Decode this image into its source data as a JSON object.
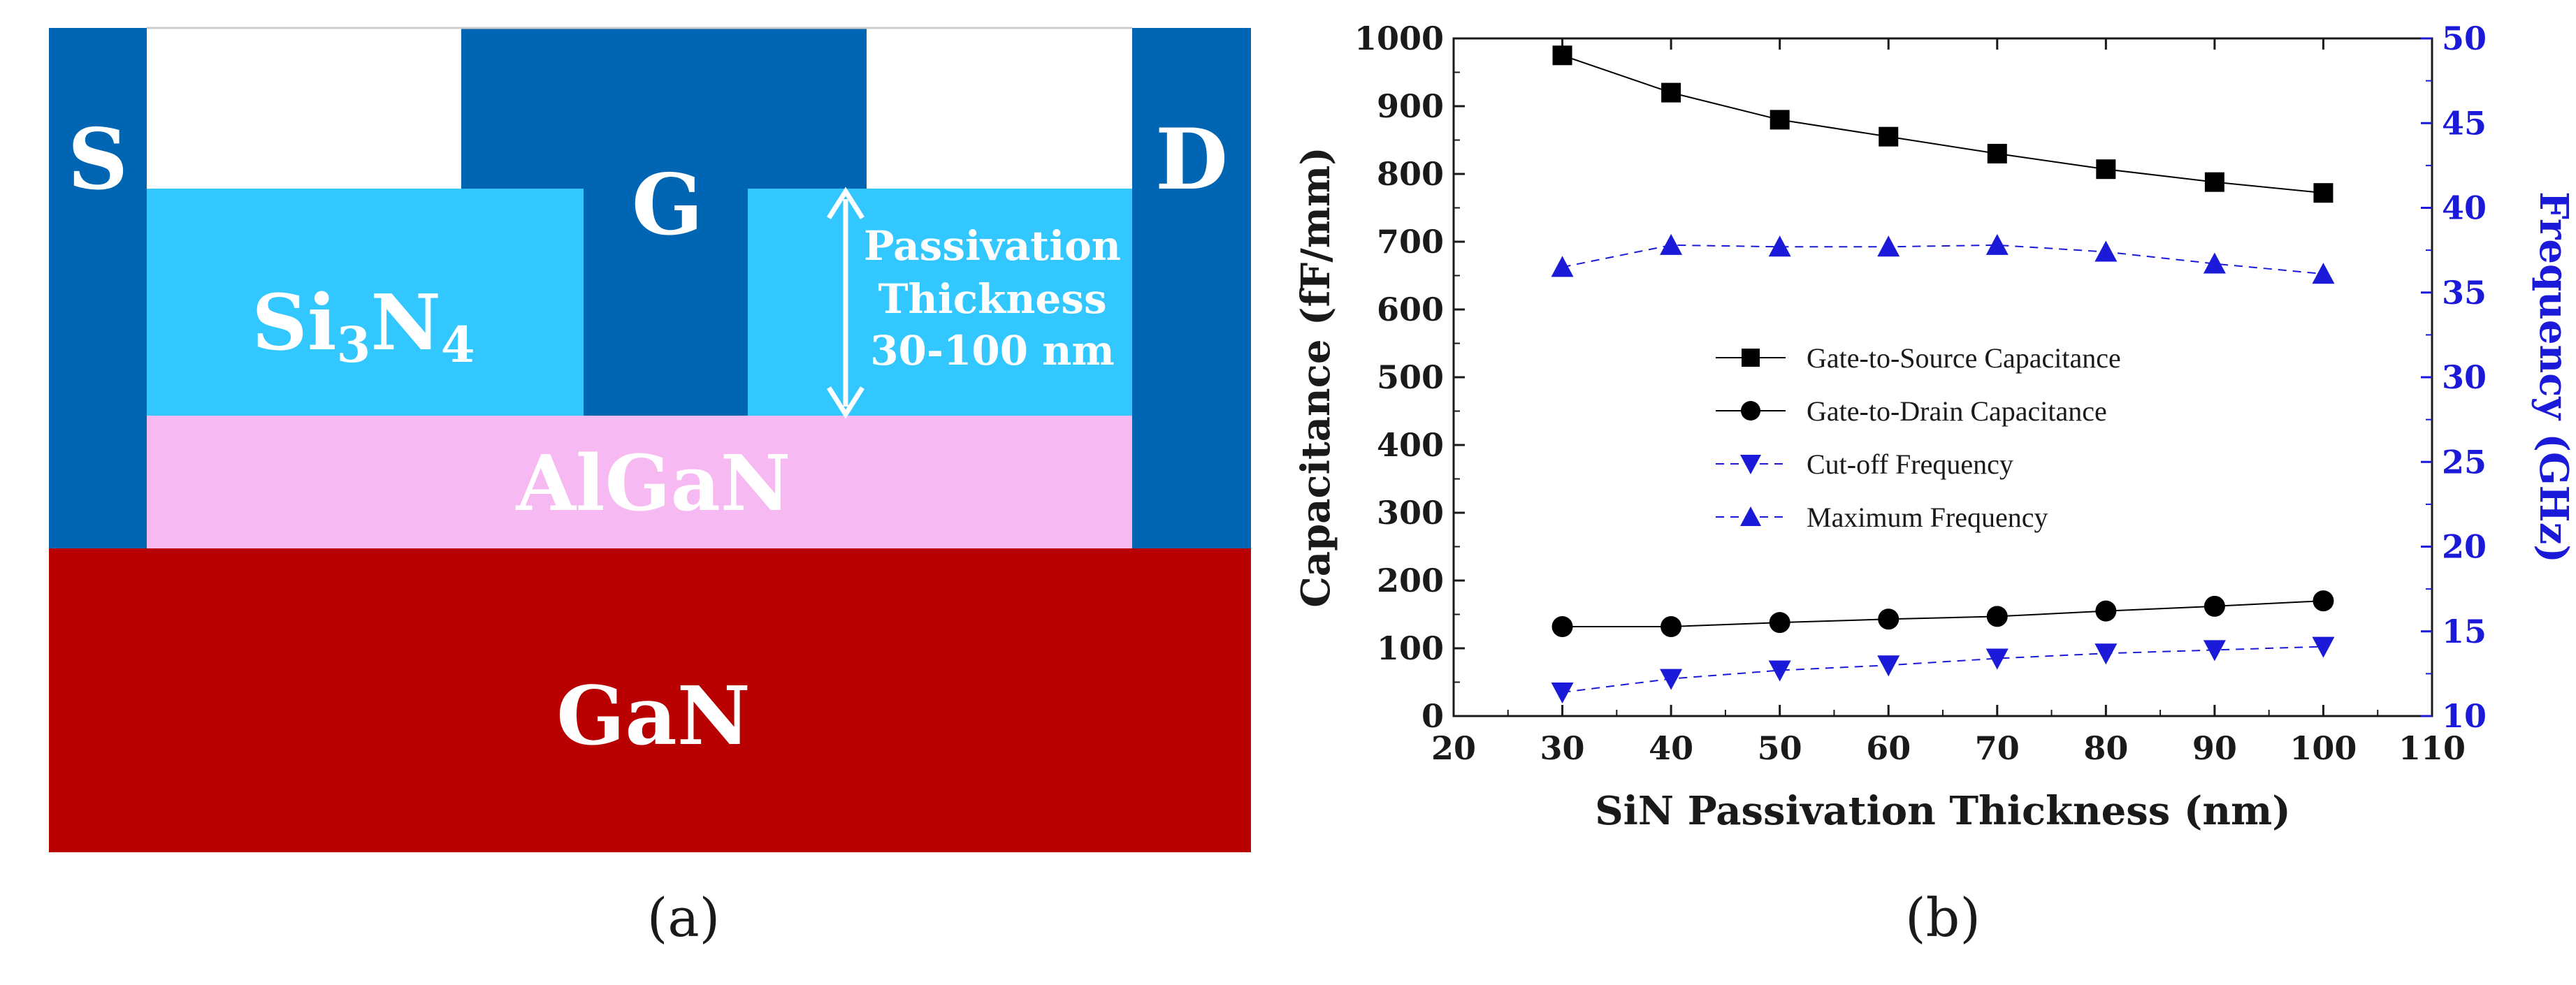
{
  "panel_a": {
    "caption": "(a)",
    "labels": {
      "source": "S",
      "gate": "G",
      "drain": "D",
      "passivation_pre": "Si",
      "passivation_sub1": "3",
      "passivation_mid": "N",
      "passivation_sub2": "4",
      "barrier": "AlGaN",
      "substrate": "GaN",
      "thickness_line1": "Passivation",
      "thickness_line2": "Thickness",
      "thickness_line3": "30-100 nm"
    },
    "colors": {
      "contact": "#0066b3",
      "passivation": "#33c7ff",
      "barrier": "#f7b9f1",
      "substrate": "#b80000"
    }
  },
  "panel_b": {
    "caption": "(b)"
  },
  "chart_data": {
    "type": "line",
    "xlabel": "SiN Passivation Thickness (nm)",
    "ylabel": "Capacitance (fF/mm)",
    "ylabel_right": "Frequency (GHz)",
    "xlim": [
      20,
      110
    ],
    "ylim": [
      0,
      1000
    ],
    "ylim_right": [
      10,
      50
    ],
    "x_ticks": [
      20,
      30,
      40,
      50,
      60,
      70,
      80,
      90,
      100,
      110
    ],
    "y_ticks": [
      0,
      100,
      200,
      300,
      400,
      500,
      600,
      700,
      800,
      900,
      1000
    ],
    "y_ticks_right": [
      10,
      15,
      20,
      25,
      30,
      35,
      40,
      45,
      50
    ],
    "legend_position": "center",
    "x": [
      30,
      40,
      50,
      60,
      70,
      80,
      90,
      100
    ],
    "series": [
      {
        "name": "Gate-to-Source Capacitance",
        "axis": "left",
        "marker": "square",
        "color": "#000000",
        "dash": false,
        "values": [
          975,
          920,
          880,
          855,
          830,
          807,
          788,
          772
        ]
      },
      {
        "name": "Gate-to-Drain Capacitance",
        "axis": "left",
        "marker": "circle",
        "color": "#000000",
        "dash": false,
        "values": [
          132,
          132,
          138,
          143,
          147,
          155,
          162,
          170
        ]
      },
      {
        "name": "Cut-off Frequency",
        "axis": "right",
        "marker": "triangle-down",
        "color": "#1a1ad8",
        "dash": true,
        "values": [
          11.4,
          12.2,
          12.7,
          13.0,
          13.4,
          13.7,
          13.9,
          14.1
        ]
      },
      {
        "name": "Maximum Frequency",
        "axis": "right",
        "marker": "triangle-up",
        "color": "#1a1ad8",
        "dash": true,
        "values": [
          36.5,
          37.8,
          37.7,
          37.7,
          37.8,
          37.4,
          36.7,
          36.1
        ]
      }
    ]
  }
}
